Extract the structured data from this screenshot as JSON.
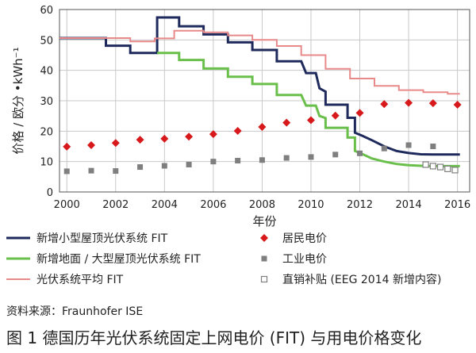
{
  "chart_data": {
    "type": "line",
    "title": "",
    "xlabel": "年份",
    "ylabel": "价格 / 欧分 •kWh⁻¹",
    "xlim": [
      1999.7,
      2016.5
    ],
    "ylim": [
      0,
      60
    ],
    "x_ticks": [
      2000,
      2002,
      2004,
      2006,
      2008,
      2010,
      2012,
      2014,
      2016
    ],
    "y_ticks": [
      0,
      10,
      20,
      30,
      40,
      50,
      60
    ],
    "grid": true,
    "legend_position": "bottom",
    "series": [
      {
        "name": "新增小型屋顶光伏系统 FIT",
        "kind": "step-line",
        "color": "#1f2a5c",
        "points": [
          [
            1999.7,
            50.6
          ],
          [
            2001.6,
            50.6
          ],
          [
            2001.6,
            48.1
          ],
          [
            2002.6,
            48.1
          ],
          [
            2002.6,
            45.7
          ],
          [
            2003.7,
            45.7
          ],
          [
            2003.7,
            57.4
          ],
          [
            2004.6,
            57.4
          ],
          [
            2004.6,
            54.5
          ],
          [
            2005.6,
            54.5
          ],
          [
            2005.6,
            51.8
          ],
          [
            2006.6,
            51.8
          ],
          [
            2006.6,
            49.2
          ],
          [
            2007.6,
            49.2
          ],
          [
            2007.6,
            46.7
          ],
          [
            2008.6,
            46.7
          ],
          [
            2008.6,
            43.0
          ],
          [
            2009.6,
            43.0
          ],
          [
            2009.8,
            39.1
          ],
          [
            2010.2,
            39.1
          ],
          [
            2010.35,
            34.1
          ],
          [
            2010.6,
            33.0
          ],
          [
            2010.6,
            28.7
          ],
          [
            2011.5,
            28.7
          ],
          [
            2011.5,
            24.4
          ],
          [
            2011.8,
            24.4
          ],
          [
            2011.8,
            19.5
          ],
          [
            2012.1,
            18.5
          ],
          [
            2012.5,
            17.0
          ],
          [
            2013.0,
            15.0
          ],
          [
            2013.5,
            13.5
          ],
          [
            2014.0,
            12.8
          ],
          [
            2014.5,
            12.4
          ],
          [
            2015.0,
            12.3
          ],
          [
            2016.1,
            12.3
          ]
        ]
      },
      {
        "name": "新增地面 / 大型屋顶光伏系统 FIT",
        "kind": "step-line",
        "color": "#6abf4b",
        "points": [
          [
            2003.7,
            45.7
          ],
          [
            2004.6,
            45.7
          ],
          [
            2004.6,
            43.4
          ],
          [
            2005.6,
            43.4
          ],
          [
            2005.6,
            40.6
          ],
          [
            2006.6,
            40.6
          ],
          [
            2006.6,
            37.9
          ],
          [
            2007.6,
            37.9
          ],
          [
            2007.6,
            35.5
          ],
          [
            2008.6,
            35.5
          ],
          [
            2008.6,
            31.9
          ],
          [
            2009.6,
            31.9
          ],
          [
            2009.8,
            28.4
          ],
          [
            2010.2,
            28.4
          ],
          [
            2010.35,
            25.0
          ],
          [
            2010.6,
            24.3
          ],
          [
            2010.6,
            21.1
          ],
          [
            2011.5,
            21.1
          ],
          [
            2011.5,
            17.9
          ],
          [
            2011.8,
            17.9
          ],
          [
            2011.8,
            13.5
          ],
          [
            2012.1,
            12.5
          ],
          [
            2012.5,
            11.0
          ],
          [
            2013.0,
            10.0
          ],
          [
            2013.5,
            9.2
          ],
          [
            2014.0,
            8.8
          ],
          [
            2014.5,
            8.6
          ],
          [
            2015.0,
            8.5
          ],
          [
            2016.1,
            8.5
          ]
        ]
      },
      {
        "name": "光伏系统平均 FIT",
        "kind": "step-line",
        "color": "#e88a8a",
        "points": [
          [
            1999.7,
            50.6
          ],
          [
            2001.6,
            50.6
          ],
          [
            2001.6,
            50.6
          ],
          [
            2002.6,
            50.6
          ],
          [
            2002.6,
            49.5
          ],
          [
            2003.6,
            49.5
          ],
          [
            2003.6,
            50.5
          ],
          [
            2004.4,
            50.5
          ],
          [
            2004.4,
            53.0
          ],
          [
            2005.6,
            53.0
          ],
          [
            2005.6,
            52.5
          ],
          [
            2006.6,
            52.5
          ],
          [
            2006.6,
            51.5
          ],
          [
            2007.6,
            51.5
          ],
          [
            2007.6,
            50.0
          ],
          [
            2008.6,
            50.0
          ],
          [
            2008.6,
            48.0
          ],
          [
            2009.6,
            48.0
          ],
          [
            2009.6,
            45.0
          ],
          [
            2010.6,
            45.0
          ],
          [
            2010.6,
            40.5
          ],
          [
            2011.6,
            40.5
          ],
          [
            2011.6,
            37.3
          ],
          [
            2012.6,
            37.3
          ],
          [
            2012.6,
            34.9
          ],
          [
            2013.6,
            34.9
          ],
          [
            2013.6,
            33.5
          ],
          [
            2014.6,
            33.5
          ],
          [
            2014.6,
            32.8
          ],
          [
            2015.6,
            32.8
          ],
          [
            2015.6,
            32.3
          ],
          [
            2016.1,
            32.3
          ]
        ]
      },
      {
        "name": "居民电价",
        "kind": "marker",
        "marker": "diamond",
        "color": "#d7191c",
        "x": [
          2000,
          2001,
          2002,
          2003,
          2004,
          2005,
          2006,
          2007,
          2008,
          2009,
          2010,
          2011,
          2012,
          2013,
          2014,
          2015,
          2016
        ],
        "values": [
          14.9,
          15.4,
          16.1,
          17.2,
          17.5,
          18.2,
          19.0,
          20.1,
          21.4,
          22.8,
          23.6,
          25.1,
          26.0,
          28.9,
          29.3,
          29.2,
          28.7
        ]
      },
      {
        "name": "工业电价",
        "kind": "marker",
        "marker": "square",
        "color": "#7f7f7f",
        "x": [
          2000,
          2001,
          2002,
          2003,
          2004,
          2005,
          2006,
          2007,
          2008,
          2009,
          2010,
          2011,
          2012,
          2013,
          2014,
          2015
        ],
        "values": [
          6.8,
          7.0,
          6.9,
          8.2,
          8.6,
          9.0,
          10.0,
          10.3,
          10.5,
          11.2,
          11.5,
          12.3,
          12.7,
          14.3,
          15.4,
          15.0
        ]
      },
      {
        "name": "直销补贴 (EEG 2014 新增内容)",
        "kind": "marker",
        "marker": "open-square",
        "color": "#7f7f7f",
        "x": [
          2014.7,
          2015.0,
          2015.3,
          2015.6,
          2015.9
        ],
        "values": [
          9.0,
          8.5,
          8.2,
          7.6,
          7.2
        ]
      }
    ]
  },
  "source_text": "资料来源：Fraunhofer ISE",
  "caption_text": "图 1  德国历年光伏系统固定上网电价 (FIT) 与用电价格变化"
}
